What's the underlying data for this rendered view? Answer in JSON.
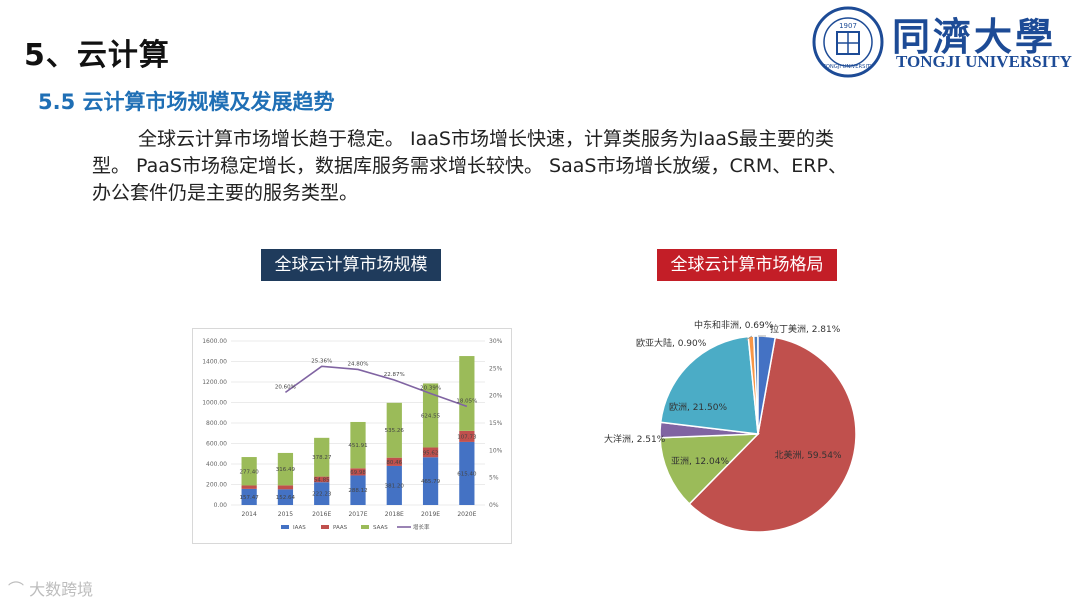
{
  "page": {
    "title": "5、云计算",
    "subtitle": "5.5 云计算市场规模及发展趋势",
    "paragraph_lines": [
      "全球云计算市场增长趋于稳定。 IaaS市场增长快速，计算类服务为IaaS最主要的类",
      "型。 PaaS市场稳定增长，数据库服务需求增长较快。 SaaS市场增长放缓，CRM、ERP、",
      "办公套件仍是主要的服务类型。"
    ]
  },
  "logo": {
    "name_cn": "同濟大學",
    "name_en": "TONGJI UNIVERSITY",
    "seal_year": "1907",
    "seal_text": "TONGJI UNIVERSITY"
  },
  "chips": {
    "left": "全球云计算市场规模",
    "right": "全球云计算市场格局"
  },
  "watermark": "大数跨境",
  "colors": {
    "iaas": "#4472c4",
    "paas": "#c0504d",
    "saas": "#9bbb59",
    "growth": "#8064a2",
    "title_blue": "#1f6fb5",
    "chip_dark": "#1f3b5c",
    "chip_red": "#c31e27"
  },
  "chart_data": [
    {
      "type": "bar",
      "stacked": true,
      "categories": [
        "2014",
        "2015",
        "2016E",
        "2017E",
        "2018E",
        "2019E",
        "2020E"
      ],
      "series": [
        {
          "name": "IAAS",
          "values": [
            157.47,
            152.64,
            222.23,
            288.12,
            381.2,
            465.79,
            615.4
          ],
          "labels": [
            "157.47",
            "152.64",
            "222.23",
            "288.12",
            "381.20",
            "465.79",
            "615.40"
          ]
        },
        {
          "name": "PAAS",
          "values": [
            33.0,
            38.75,
            54.85,
            69.98,
            80.46,
            95.62,
            107.73
          ],
          "labels": [
            "",
            "",
            "54.85",
            "69.98",
            "80.46",
            "95.62",
            "107.73"
          ]
        },
        {
          "name": "SAAS",
          "values": [
            277.4,
            316.49,
            378.27,
            451.91,
            535.26,
            624.55,
            729.95
          ],
          "labels": [
            "277.40",
            "316.49",
            "378.27",
            "451.91",
            "535.26",
            "624.55",
            ""
          ]
        },
        {
          "name": "增长率",
          "axis": "right",
          "values": [
            null,
            20.6,
            25.36,
            24.8,
            22.87,
            20.39,
            18.05
          ],
          "labels": [
            "",
            "20.60%",
            "25.36%",
            "24.80%",
            "22.87%",
            "20.39%",
            "18.05%"
          ]
        }
      ],
      "y_ticks": [
        "0.00",
        "200.00",
        "400.00",
        "600.00",
        "800.00",
        "1000.00",
        "1200.00",
        "1400.00",
        "1600.00"
      ],
      "ylim": [
        0,
        1600
      ],
      "y2_ticks": [
        "0%",
        "5%",
        "10%",
        "15%",
        "20%",
        "25%",
        "30%"
      ],
      "y2lim": [
        0,
        30
      ],
      "legend_position": "bottom",
      "grid": true
    },
    {
      "type": "pie",
      "labels": [
        "北美洲",
        "亚洲",
        "大洋洲",
        "欧洲",
        "欧亚大陆",
        "中东和非洲",
        "拉丁美洲"
      ],
      "values": [
        59.54,
        12.04,
        2.51,
        21.5,
        0.9,
        0.69,
        2.81
      ],
      "value_labels": [
        "59.54%",
        "12.04%",
        "2.51%",
        "21.50%",
        "0.90%",
        "0.69%",
        "2.81%"
      ],
      "colors": [
        "#c0504d",
        "#9bbb59",
        "#8064a2",
        "#4bacc6",
        "#f79646",
        "#4f81bd",
        "#4472c4"
      ]
    }
  ]
}
